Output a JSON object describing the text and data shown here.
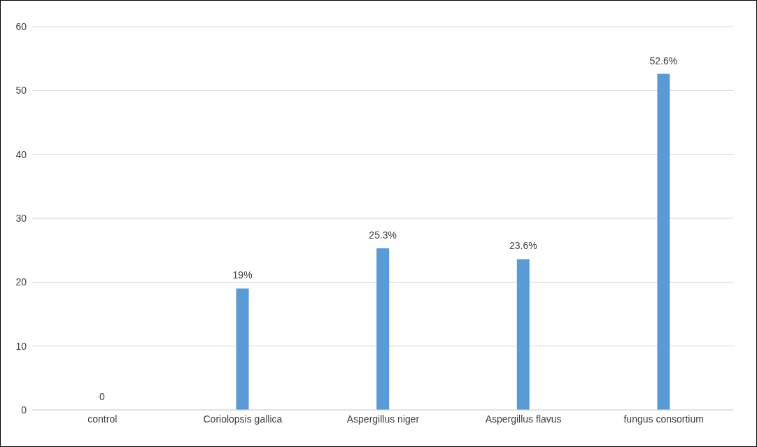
{
  "chart_data": {
    "type": "bar",
    "categories": [
      "control",
      "Coriolopsis gallica",
      "Aspergillus niger",
      "Aspergillus flavus",
      "fungus consortium"
    ],
    "values": [
      0,
      19,
      25.3,
      23.6,
      52.6
    ],
    "value_labels": [
      "0",
      "19%",
      "25.3%",
      "23.6%",
      "52.6%"
    ],
    "color": "#5b9bd5",
    "ylim": [
      0,
      60
    ],
    "yticks": [
      0,
      10,
      20,
      30,
      40,
      50,
      60
    ],
    "grid": "y",
    "legend": false
  }
}
